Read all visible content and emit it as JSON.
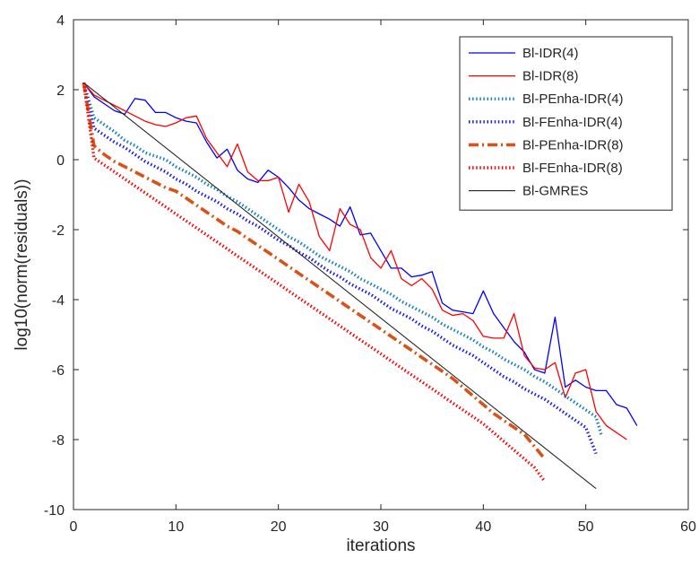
{
  "chart_data": {
    "type": "line",
    "xlabel": "iterations",
    "ylabel": "log10(norm(residuals))",
    "xlim": [
      0,
      60
    ],
    "ylim": [
      -10,
      4
    ],
    "xticks": [
      0,
      10,
      20,
      30,
      40,
      50,
      60
    ],
    "yticks": [
      -10,
      -8,
      -6,
      -4,
      -2,
      0,
      2,
      4
    ],
    "grid": false,
    "legend_position": "top-right",
    "series": [
      {
        "name": "Bl-IDR(4)",
        "color": "#0000ff",
        "style": "solid",
        "points": [
          [
            1,
            2.2
          ],
          [
            2,
            1.8
          ],
          [
            3,
            1.6
          ],
          [
            4,
            1.4
          ],
          [
            5,
            1.3
          ],
          [
            6,
            1.75
          ],
          [
            7,
            1.7
          ],
          [
            8,
            1.35
          ],
          [
            9,
            1.35
          ],
          [
            10,
            1.2
          ],
          [
            11,
            1.1
          ],
          [
            12,
            1.05
          ],
          [
            13,
            0.5
          ],
          [
            14,
            0.05
          ],
          [
            15,
            0.3
          ],
          [
            16,
            -0.3
          ],
          [
            17,
            -0.55
          ],
          [
            18,
            -0.65
          ],
          [
            19,
            -0.3
          ],
          [
            20,
            -0.5
          ],
          [
            21,
            -0.8
          ],
          [
            22,
            -1.15
          ],
          [
            23,
            -1.4
          ],
          [
            24,
            -1.55
          ],
          [
            25,
            -1.7
          ],
          [
            26,
            -1.9
          ],
          [
            27,
            -1.35
          ],
          [
            28,
            -2.15
          ],
          [
            29,
            -2.1
          ],
          [
            30,
            -2.6
          ],
          [
            31,
            -3.1
          ],
          [
            32,
            -3.1
          ],
          [
            33,
            -3.35
          ],
          [
            34,
            -3.3
          ],
          [
            35,
            -3.2
          ],
          [
            36,
            -4.1
          ],
          [
            37,
            -4.3
          ],
          [
            38,
            -4.35
          ],
          [
            39,
            -4.4
          ],
          [
            40,
            -3.75
          ],
          [
            41,
            -4.4
          ],
          [
            42,
            -4.8
          ],
          [
            43,
            -5.2
          ],
          [
            44,
            -5.5
          ],
          [
            45,
            -6.0
          ],
          [
            46,
            -6.1
          ],
          [
            47,
            -4.5
          ],
          [
            48,
            -6.5
          ],
          [
            49,
            -6.3
          ],
          [
            50,
            -6.5
          ],
          [
            51,
            -6.6
          ],
          [
            52,
            -6.6
          ],
          [
            53,
            -7.0
          ],
          [
            54,
            -7.1
          ],
          [
            55,
            -7.6
          ]
        ]
      },
      {
        "name": "Bl-IDR(8)",
        "color": "#ff0000",
        "style": "solid",
        "points": [
          [
            1,
            2.2
          ],
          [
            2,
            1.85
          ],
          [
            3,
            1.7
          ],
          [
            4,
            1.55
          ],
          [
            5,
            1.4
          ],
          [
            6,
            1.25
          ],
          [
            7,
            1.1
          ],
          [
            8,
            1.0
          ],
          [
            9,
            0.95
          ],
          [
            10,
            1.05
          ],
          [
            11,
            1.2
          ],
          [
            12,
            1.25
          ],
          [
            13,
            0.6
          ],
          [
            14,
            0.2
          ],
          [
            15,
            -0.2
          ],
          [
            16,
            0.45
          ],
          [
            17,
            -0.35
          ],
          [
            18,
            -0.6
          ],
          [
            19,
            -0.6
          ],
          [
            20,
            -0.5
          ],
          [
            21,
            -1.5
          ],
          [
            22,
            -0.7
          ],
          [
            23,
            -1.2
          ],
          [
            24,
            -2.2
          ],
          [
            25,
            -2.6
          ],
          [
            26,
            -1.4
          ],
          [
            27,
            -1.85
          ],
          [
            28,
            -2.0
          ],
          [
            29,
            -2.8
          ],
          [
            30,
            -3.1
          ],
          [
            31,
            -2.6
          ],
          [
            32,
            -3.4
          ],
          [
            33,
            -3.6
          ],
          [
            34,
            -3.4
          ],
          [
            35,
            -3.7
          ],
          [
            36,
            -4.3
          ],
          [
            37,
            -4.45
          ],
          [
            38,
            -4.4
          ],
          [
            39,
            -4.6
          ],
          [
            40,
            -5.05
          ],
          [
            41,
            -5.1
          ],
          [
            42,
            -5.1
          ],
          [
            43,
            -4.4
          ],
          [
            44,
            -5.6
          ],
          [
            45,
            -5.95
          ],
          [
            46,
            -6.0
          ],
          [
            47,
            -5.8
          ],
          [
            48,
            -6.8
          ],
          [
            49,
            -6.1
          ],
          [
            50,
            -6.0
          ],
          [
            51,
            -7.2
          ],
          [
            52,
            -7.6
          ],
          [
            53,
            -7.8
          ],
          [
            54,
            -8.0
          ]
        ]
      },
      {
        "name": "Bl-PEnha-IDR(4)",
        "color": "#1580c0",
        "style": "dotted",
        "points": [
          [
            1,
            2.2
          ],
          [
            2,
            1.2
          ],
          [
            3,
            1.0
          ],
          [
            4,
            0.8
          ],
          [
            5,
            0.55
          ],
          [
            6,
            0.4
          ],
          [
            7,
            0.2
          ],
          [
            8,
            0.1
          ],
          [
            9,
            0.0
          ],
          [
            10,
            -0.2
          ],
          [
            11,
            -0.35
          ],
          [
            12,
            -0.5
          ],
          [
            13,
            -0.7
          ],
          [
            14,
            -0.85
          ],
          [
            15,
            -1.05
          ],
          [
            16,
            -1.2
          ],
          [
            17,
            -1.4
          ],
          [
            18,
            -1.6
          ],
          [
            19,
            -1.8
          ],
          [
            20,
            -2.0
          ],
          [
            21,
            -2.2
          ],
          [
            22,
            -2.35
          ],
          [
            23,
            -2.55
          ],
          [
            24,
            -2.75
          ],
          [
            25,
            -2.9
          ],
          [
            26,
            -3.05
          ],
          [
            27,
            -3.2
          ],
          [
            28,
            -3.4
          ],
          [
            29,
            -3.55
          ],
          [
            30,
            -3.7
          ],
          [
            31,
            -3.85
          ],
          [
            32,
            -4.05
          ],
          [
            33,
            -4.2
          ],
          [
            34,
            -4.35
          ],
          [
            35,
            -4.5
          ],
          [
            36,
            -4.7
          ],
          [
            37,
            -4.85
          ],
          [
            38,
            -5.0
          ],
          [
            39,
            -5.15
          ],
          [
            40,
            -5.35
          ],
          [
            41,
            -5.5
          ],
          [
            42,
            -5.7
          ],
          [
            43,
            -5.85
          ],
          [
            44,
            -6.0
          ],
          [
            45,
            -6.2
          ],
          [
            46,
            -6.35
          ],
          [
            47,
            -6.55
          ],
          [
            48,
            -6.75
          ],
          [
            49,
            -6.95
          ],
          [
            50,
            -7.15
          ],
          [
            51,
            -7.35
          ],
          [
            51.5,
            -7.85
          ]
        ]
      },
      {
        "name": "Bl-FEnha-IDR(4)",
        "color": "#1a1aee",
        "style": "dotted",
        "points": [
          [
            1,
            2.2
          ],
          [
            2,
            0.9
          ],
          [
            3,
            0.7
          ],
          [
            4,
            0.5
          ],
          [
            5,
            0.35
          ],
          [
            6,
            0.15
          ],
          [
            7,
            -0.05
          ],
          [
            8,
            -0.2
          ],
          [
            9,
            -0.35
          ],
          [
            10,
            -0.55
          ],
          [
            11,
            -0.7
          ],
          [
            12,
            -0.9
          ],
          [
            13,
            -1.05
          ],
          [
            14,
            -1.2
          ],
          [
            15,
            -1.4
          ],
          [
            16,
            -1.55
          ],
          [
            17,
            -1.75
          ],
          [
            18,
            -1.9
          ],
          [
            19,
            -2.1
          ],
          [
            20,
            -2.3
          ],
          [
            21,
            -2.45
          ],
          [
            22,
            -2.65
          ],
          [
            23,
            -2.8
          ],
          [
            24,
            -3.0
          ],
          [
            25,
            -3.2
          ],
          [
            26,
            -3.35
          ],
          [
            27,
            -3.55
          ],
          [
            28,
            -3.7
          ],
          [
            29,
            -3.85
          ],
          [
            30,
            -4.05
          ],
          [
            31,
            -4.25
          ],
          [
            32,
            -4.4
          ],
          [
            33,
            -4.55
          ],
          [
            34,
            -4.75
          ],
          [
            35,
            -4.9
          ],
          [
            36,
            -5.1
          ],
          [
            37,
            -5.3
          ],
          [
            38,
            -5.45
          ],
          [
            39,
            -5.6
          ],
          [
            40,
            -5.8
          ],
          [
            41,
            -6.0
          ],
          [
            42,
            -6.2
          ],
          [
            43,
            -6.35
          ],
          [
            44,
            -6.55
          ],
          [
            45,
            -6.7
          ],
          [
            46,
            -6.85
          ],
          [
            47,
            -7.05
          ],
          [
            48,
            -7.25
          ],
          [
            49,
            -7.45
          ],
          [
            50,
            -7.65
          ],
          [
            51,
            -8.4
          ]
        ]
      },
      {
        "name": "Bl-PEnha-IDR(8)",
        "color": "#d95319",
        "style": "dashdot",
        "points": [
          [
            1,
            2.2
          ],
          [
            2,
            0.4
          ],
          [
            3,
            0.15
          ],
          [
            4,
            -0.05
          ],
          [
            5,
            -0.2
          ],
          [
            6,
            -0.35
          ],
          [
            7,
            -0.5
          ],
          [
            8,
            -0.65
          ],
          [
            9,
            -0.8
          ],
          [
            10,
            -0.9
          ],
          [
            11,
            -1.1
          ],
          [
            12,
            -1.3
          ],
          [
            13,
            -1.5
          ],
          [
            14,
            -1.7
          ],
          [
            15,
            -1.9
          ],
          [
            16,
            -2.05
          ],
          [
            17,
            -2.25
          ],
          [
            18,
            -2.45
          ],
          [
            19,
            -2.65
          ],
          [
            20,
            -2.85
          ],
          [
            21,
            -3.05
          ],
          [
            22,
            -3.25
          ],
          [
            23,
            -3.45
          ],
          [
            24,
            -3.65
          ],
          [
            25,
            -3.85
          ],
          [
            26,
            -4.05
          ],
          [
            27,
            -4.25
          ],
          [
            28,
            -4.45
          ],
          [
            29,
            -4.65
          ],
          [
            30,
            -4.85
          ],
          [
            31,
            -5.05
          ],
          [
            32,
            -5.25
          ],
          [
            33,
            -5.45
          ],
          [
            34,
            -5.65
          ],
          [
            35,
            -5.85
          ],
          [
            36,
            -6.05
          ],
          [
            37,
            -6.25
          ],
          [
            38,
            -6.5
          ],
          [
            39,
            -6.75
          ],
          [
            40,
            -7.0
          ],
          [
            41,
            -7.25
          ],
          [
            42,
            -7.45
          ],
          [
            43,
            -7.65
          ],
          [
            44,
            -7.85
          ],
          [
            45,
            -8.2
          ],
          [
            46,
            -8.55
          ]
        ]
      },
      {
        "name": "Bl-FEnha-IDR(8)",
        "color": "#ff0000",
        "style": "dotted",
        "points": [
          [
            1,
            2.2
          ],
          [
            2,
            0.05
          ],
          [
            3,
            -0.15
          ],
          [
            4,
            -0.35
          ],
          [
            5,
            -0.55
          ],
          [
            6,
            -0.75
          ],
          [
            7,
            -0.95
          ],
          [
            8,
            -1.15
          ],
          [
            9,
            -1.35
          ],
          [
            10,
            -1.55
          ],
          [
            11,
            -1.75
          ],
          [
            12,
            -1.95
          ],
          [
            13,
            -2.15
          ],
          [
            14,
            -2.35
          ],
          [
            15,
            -2.55
          ],
          [
            16,
            -2.75
          ],
          [
            17,
            -2.95
          ],
          [
            18,
            -3.15
          ],
          [
            19,
            -3.35
          ],
          [
            20,
            -3.55
          ],
          [
            21,
            -3.75
          ],
          [
            22,
            -3.95
          ],
          [
            23,
            -4.15
          ],
          [
            24,
            -4.35
          ],
          [
            25,
            -4.55
          ],
          [
            26,
            -4.75
          ],
          [
            27,
            -4.95
          ],
          [
            28,
            -5.15
          ],
          [
            29,
            -5.35
          ],
          [
            30,
            -5.55
          ],
          [
            31,
            -5.75
          ],
          [
            32,
            -5.95
          ],
          [
            33,
            -6.15
          ],
          [
            34,
            -6.35
          ],
          [
            35,
            -6.55
          ],
          [
            36,
            -6.75
          ],
          [
            37,
            -6.95
          ],
          [
            38,
            -7.15
          ],
          [
            39,
            -7.35
          ],
          [
            40,
            -7.55
          ],
          [
            41,
            -7.8
          ],
          [
            42,
            -8.05
          ],
          [
            43,
            -8.3
          ],
          [
            44,
            -8.55
          ],
          [
            45,
            -8.8
          ],
          [
            46,
            -9.2
          ]
        ]
      },
      {
        "name": "Bl-GMRES",
        "color": "#262626",
        "style": "solid-thin",
        "points": [
          [
            1,
            2.2
          ],
          [
            51,
            -9.4
          ]
        ]
      }
    ]
  }
}
